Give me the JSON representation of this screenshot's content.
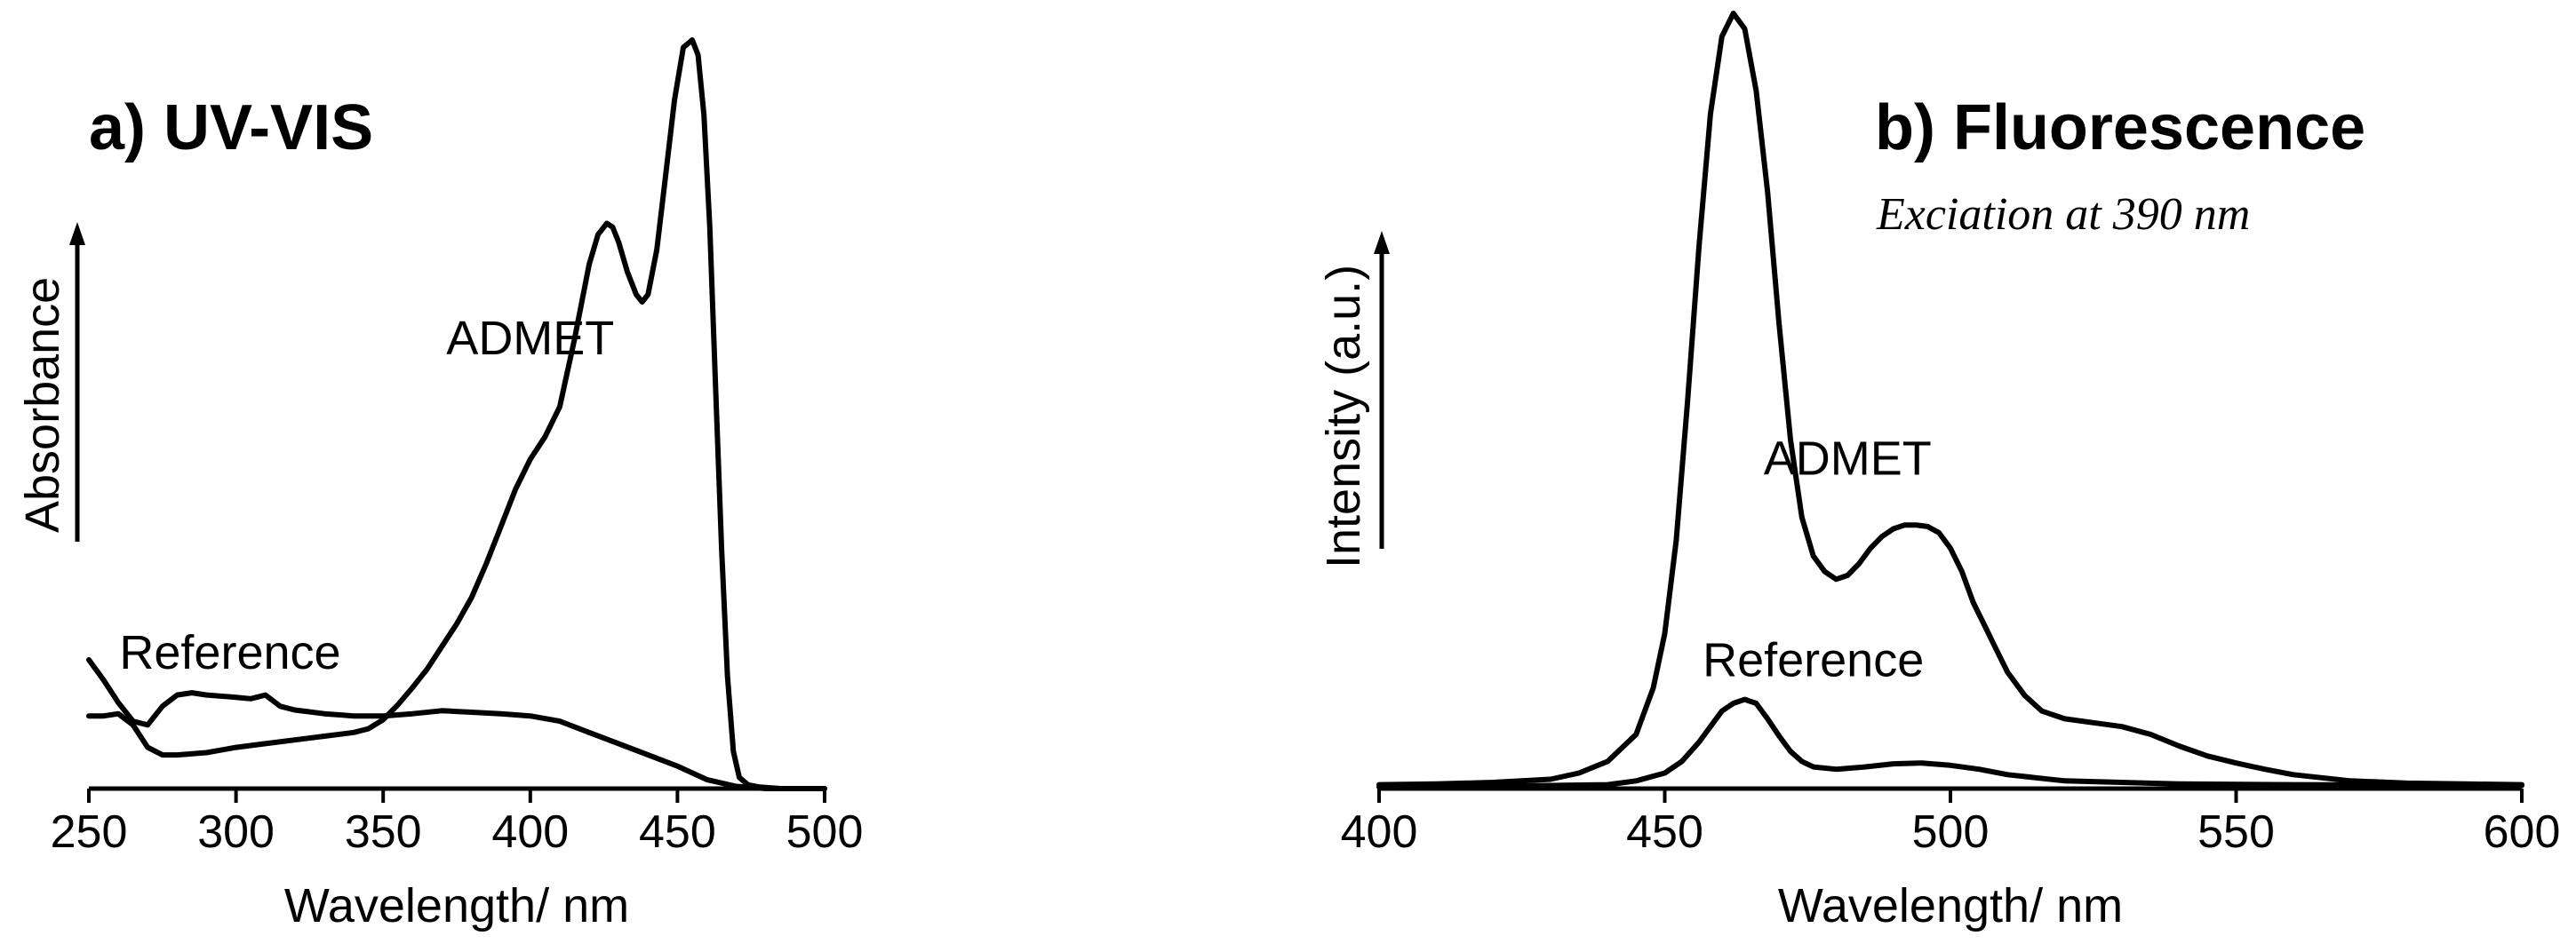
{
  "chart_data": [
    {
      "type": "line",
      "title": "a) UV-VIS",
      "xlabel": "Wavelength/ nm",
      "ylabel": "Absorbance",
      "xlim": [
        250,
        500
      ],
      "ylim": [
        0,
        1
      ],
      "x_ticks": [
        250,
        300,
        350,
        400,
        450,
        500
      ],
      "y_ticks_shown": false,
      "grid": false,
      "series": [
        {
          "name": "ADMET",
          "label_at": [
            400,
            0.58
          ],
          "x": [
            250,
            255,
            260,
            265,
            270,
            275,
            280,
            290,
            300,
            310,
            320,
            330,
            340,
            345,
            350,
            355,
            360,
            365,
            370,
            375,
            380,
            385,
            390,
            395,
            400,
            405,
            410,
            415,
            418,
            420,
            423,
            426,
            428,
            430,
            433,
            436,
            438,
            440,
            443,
            446,
            449,
            452,
            455,
            457,
            459,
            461,
            463,
            465,
            467,
            469,
            471,
            474,
            478,
            485,
            500
          ],
          "y": [
            0.097,
            0.097,
            0.1,
            0.085,
            0.055,
            0.045,
            0.045,
            0.048,
            0.055,
            0.06,
            0.065,
            0.07,
            0.075,
            0.08,
            0.092,
            0.112,
            0.135,
            0.16,
            0.19,
            0.22,
            0.255,
            0.3,
            0.35,
            0.4,
            0.44,
            0.47,
            0.51,
            0.6,
            0.66,
            0.7,
            0.74,
            0.755,
            0.75,
            0.73,
            0.69,
            0.66,
            0.65,
            0.66,
            0.72,
            0.82,
            0.92,
            0.99,
            1.0,
            0.98,
            0.9,
            0.75,
            0.53,
            0.32,
            0.15,
            0.05,
            0.015,
            0.005,
            0.002,
            0.0,
            0.0
          ]
        },
        {
          "name": "Reference",
          "label_at": [
            298,
            0.16
          ],
          "x": [
            250,
            255,
            260,
            265,
            270,
            275,
            280,
            285,
            290,
            300,
            305,
            310,
            315,
            320,
            330,
            340,
            350,
            360,
            370,
            380,
            390,
            400,
            410,
            420,
            430,
            440,
            450,
            460,
            470,
            480,
            500
          ],
          "y": [
            0.172,
            0.145,
            0.115,
            0.09,
            0.085,
            0.11,
            0.125,
            0.128,
            0.125,
            0.122,
            0.12,
            0.125,
            0.11,
            0.105,
            0.1,
            0.097,
            0.097,
            0.1,
            0.104,
            0.102,
            0.1,
            0.097,
            0.09,
            0.075,
            0.06,
            0.045,
            0.03,
            0.012,
            0.003,
            0.0,
            0.0
          ]
        }
      ]
    },
    {
      "type": "line",
      "title": "b) Fluorescence",
      "subtitle": "Exciation at 390 nm",
      "xlabel": "Wavelength/ nm",
      "ylabel": "Intensity (a.u.)",
      "xlim": [
        400,
        600
      ],
      "ylim": [
        0,
        1
      ],
      "x_ticks": [
        400,
        450,
        500,
        550,
        600
      ],
      "y_ticks_shown": false,
      "grid": false,
      "series": [
        {
          "name": "ADMET",
          "label_at": [
            482,
            0.405
          ],
          "x": [
            400,
            410,
            420,
            430,
            435,
            440,
            445,
            448,
            450,
            452,
            454,
            456,
            458,
            460,
            462,
            464,
            466,
            468,
            470,
            472,
            474,
            476,
            478,
            480,
            482,
            484,
            486,
            488,
            490,
            492,
            494,
            496,
            498,
            500,
            502,
            504,
            506,
            508,
            510,
            513,
            516,
            520,
            525,
            530,
            535,
            540,
            545,
            550,
            555,
            560,
            570,
            580,
            590,
            600
          ],
          "y": [
            0.005,
            0.006,
            0.008,
            0.012,
            0.02,
            0.035,
            0.07,
            0.13,
            0.2,
            0.32,
            0.5,
            0.7,
            0.87,
            0.97,
            1.0,
            0.98,
            0.9,
            0.77,
            0.6,
            0.45,
            0.35,
            0.3,
            0.28,
            0.27,
            0.275,
            0.29,
            0.31,
            0.325,
            0.335,
            0.34,
            0.34,
            0.338,
            0.33,
            0.31,
            0.28,
            0.24,
            0.21,
            0.18,
            0.15,
            0.12,
            0.1,
            0.09,
            0.085,
            0.08,
            0.07,
            0.055,
            0.042,
            0.033,
            0.025,
            0.018,
            0.01,
            0.007,
            0.006,
            0.005
          ]
        },
        {
          "name": "Reference",
          "label_at": [
            476,
            0.145
          ],
          "x": [
            400,
            420,
            440,
            445,
            450,
            453,
            456,
            458,
            460,
            462,
            464,
            466,
            468,
            470,
            472,
            474,
            476,
            480,
            485,
            490,
            495,
            500,
            505,
            510,
            520,
            540,
            560,
            600
          ],
          "y": [
            0.002,
            0.003,
            0.005,
            0.01,
            0.02,
            0.035,
            0.06,
            0.08,
            0.1,
            0.11,
            0.115,
            0.11,
            0.09,
            0.068,
            0.048,
            0.035,
            0.028,
            0.025,
            0.028,
            0.032,
            0.033,
            0.03,
            0.025,
            0.018,
            0.01,
            0.006,
            0.005,
            0.004
          ]
        }
      ]
    }
  ]
}
